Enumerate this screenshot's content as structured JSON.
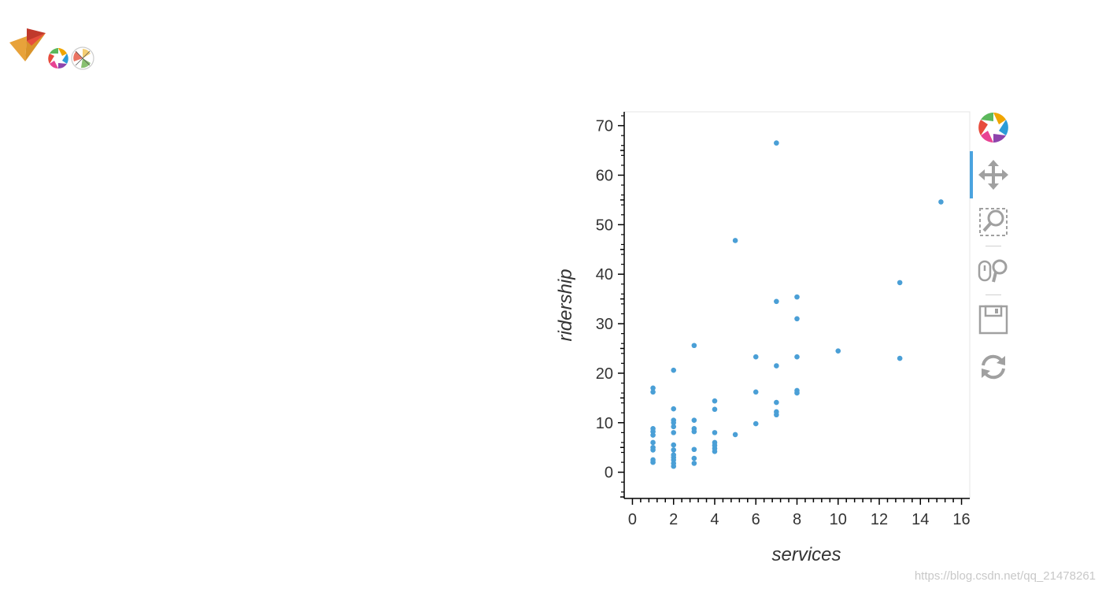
{
  "chart_data": {
    "type": "scatter",
    "title": "",
    "xlabel": "services",
    "ylabel": "ridership",
    "xlim": [
      -0.4,
      16.4
    ],
    "ylim": [
      -5.3,
      72.8
    ],
    "xticks": [
      0,
      2,
      4,
      6,
      8,
      10,
      12,
      14,
      16
    ],
    "yticks": [
      0,
      10,
      20,
      30,
      40,
      50,
      60,
      70
    ],
    "grid": false,
    "legend": "none",
    "point_color": "#4a9fd6",
    "series": [
      {
        "points": [
          [
            1,
            2
          ],
          [
            1,
            2.5
          ],
          [
            1,
            4.5
          ],
          [
            1,
            5
          ],
          [
            1,
            6
          ],
          [
            1,
            7.5
          ],
          [
            1,
            8.2
          ],
          [
            1,
            8.8
          ],
          [
            1,
            16.2
          ],
          [
            1,
            17
          ],
          [
            2,
            1.2
          ],
          [
            2,
            1.8
          ],
          [
            2,
            2.5
          ],
          [
            2,
            3
          ],
          [
            2,
            3.5
          ],
          [
            2,
            4.5
          ],
          [
            2,
            5.5
          ],
          [
            2,
            8
          ],
          [
            2,
            9.2
          ],
          [
            2,
            10
          ],
          [
            2,
            10.5
          ],
          [
            2,
            12.8
          ],
          [
            2,
            20.6
          ],
          [
            3,
            1.8
          ],
          [
            3,
            2.8
          ],
          [
            3,
            4.6
          ],
          [
            3,
            8.2
          ],
          [
            3,
            8.8
          ],
          [
            3,
            10.5
          ],
          [
            3,
            25.6
          ],
          [
            4,
            4.2
          ],
          [
            4,
            4.8
          ],
          [
            4,
            5.4
          ],
          [
            4,
            6
          ],
          [
            4,
            8
          ],
          [
            4,
            12.7
          ],
          [
            4,
            14.4
          ],
          [
            5,
            7.6
          ],
          [
            5,
            46.8
          ],
          [
            6,
            9.8
          ],
          [
            6,
            16.2
          ],
          [
            6,
            23.3
          ],
          [
            7,
            11.6
          ],
          [
            7,
            12.2
          ],
          [
            7,
            14.1
          ],
          [
            7,
            21.5
          ],
          [
            7,
            34.5
          ],
          [
            7,
            66.5
          ],
          [
            8,
            16
          ],
          [
            8,
            16.5
          ],
          [
            8,
            23.3
          ],
          [
            8,
            31
          ],
          [
            8,
            35.4
          ],
          [
            10,
            24.5
          ],
          [
            13,
            23
          ],
          [
            13,
            38.3
          ],
          [
            15,
            54.6
          ]
        ]
      }
    ]
  },
  "toolbar": {
    "tools": [
      {
        "name": "bokeh-logo-icon",
        "interactable": true
      },
      {
        "name": "pan-tool-icon",
        "interactable": true
      },
      {
        "name": "box-zoom-tool-icon",
        "interactable": true
      },
      {
        "name": "wheel-zoom-tool-icon",
        "interactable": true
      },
      {
        "name": "save-tool-icon",
        "interactable": true
      },
      {
        "name": "reset-tool-icon",
        "interactable": true
      }
    ]
  },
  "watermark": "https://blog.csdn.net/qq_21478261"
}
